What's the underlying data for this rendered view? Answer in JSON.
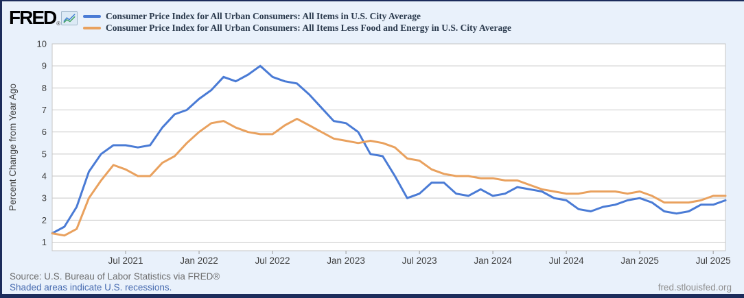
{
  "header": {
    "logo_text": "FRED",
    "logo_reg": "®",
    "legend": [
      {
        "label": "Consumer Price Index for All Urban Consumers: All Items in U.S. City Average",
        "color": "#4a7bd5"
      },
      {
        "label": "Consumer Price Index for All Urban Consumers: All Items Less Food and Energy in U.S. City Average",
        "color": "#e9a15e"
      }
    ]
  },
  "footer": {
    "source": "Source: U.S. Bureau of Labor Statistics via FRED®",
    "recessions_note": "Shaded areas indicate U.S. recessions.",
    "site": "fred.stlouisfed.org"
  },
  "colors": {
    "background": "#e9f1fb",
    "frame_navy": "#1c2c5b",
    "plot_background": "#ffffff",
    "gridline": "#c6c6c6",
    "plot_border": "#c6c6c6",
    "tick": "#999999",
    "axis_text": "#3f3f3f",
    "series_blue": "#4a7bd5",
    "series_orange": "#e9a15e"
  },
  "chart_data": {
    "type": "line",
    "title": "",
    "xlabel": "",
    "ylabel": "Percent Change from Year Ago",
    "ylim": [
      1,
      10
    ],
    "y_ticks": [
      1,
      2,
      3,
      4,
      5,
      6,
      7,
      8,
      9,
      10
    ],
    "grid": "horizontal-only",
    "legend_position": "top-left-header",
    "x": [
      "2021-01",
      "2021-02",
      "2021-03",
      "2021-04",
      "2021-05",
      "2021-06",
      "2021-07",
      "2021-08",
      "2021-09",
      "2021-10",
      "2021-11",
      "2021-12",
      "2022-01",
      "2022-02",
      "2022-03",
      "2022-04",
      "2022-05",
      "2022-06",
      "2022-07",
      "2022-08",
      "2022-09",
      "2022-10",
      "2022-11",
      "2022-12",
      "2023-01",
      "2023-02",
      "2023-03",
      "2023-04",
      "2023-05",
      "2023-06",
      "2023-07",
      "2023-08",
      "2023-09",
      "2023-10",
      "2023-11",
      "2023-12",
      "2024-01",
      "2024-02",
      "2024-03",
      "2024-04",
      "2024-05",
      "2024-06",
      "2024-07",
      "2024-08",
      "2024-09",
      "2024-10",
      "2024-11",
      "2024-12",
      "2025-01",
      "2025-02",
      "2025-03",
      "2025-04",
      "2025-05",
      "2025-06",
      "2025-07",
      "2025-08"
    ],
    "x_tick_labels": [
      "Jul 2021",
      "Jan 2022",
      "Jul 2022",
      "Jan 2023",
      "Jul 2023",
      "Jan 2024",
      "Jul 2024",
      "Jan 2025",
      "Jul 2025"
    ],
    "x_tick_indices": [
      6,
      12,
      18,
      24,
      30,
      36,
      42,
      48,
      54
    ],
    "series": [
      {
        "name": "Consumer Price Index for All Urban Consumers: All Items in U.S. City Average",
        "color": "#4a7bd5",
        "values": [
          1.4,
          1.7,
          2.6,
          4.2,
          5.0,
          5.4,
          5.4,
          5.3,
          5.4,
          6.2,
          6.8,
          7.0,
          7.5,
          7.9,
          8.5,
          8.3,
          8.6,
          9.0,
          8.5,
          8.3,
          8.2,
          7.7,
          7.1,
          6.5,
          6.4,
          6.0,
          5.0,
          4.9,
          4.0,
          3.0,
          3.2,
          3.7,
          3.7,
          3.2,
          3.1,
          3.4,
          3.1,
          3.2,
          3.5,
          3.4,
          3.3,
          3.0,
          2.9,
          2.5,
          2.4,
          2.6,
          2.7,
          2.9,
          3.0,
          2.8,
          2.4,
          2.3,
          2.4,
          2.7,
          2.7,
          2.9
        ]
      },
      {
        "name": "Consumer Price Index for All Urban Consumers: All Items Less Food and Energy in U.S. City Average",
        "color": "#e9a15e",
        "values": [
          1.4,
          1.3,
          1.6,
          3.0,
          3.8,
          4.5,
          4.3,
          4.0,
          4.0,
          4.6,
          4.9,
          5.5,
          6.0,
          6.4,
          6.5,
          6.2,
          6.0,
          5.9,
          5.9,
          6.3,
          6.6,
          6.3,
          6.0,
          5.7,
          5.6,
          5.5,
          5.6,
          5.5,
          5.3,
          4.8,
          4.7,
          4.3,
          4.1,
          4.0,
          4.0,
          3.9,
          3.9,
          3.8,
          3.8,
          3.6,
          3.4,
          3.3,
          3.2,
          3.2,
          3.3,
          3.3,
          3.3,
          3.2,
          3.3,
          3.1,
          2.8,
          2.8,
          2.8,
          2.9,
          3.1,
          3.1
        ]
      }
    ]
  }
}
